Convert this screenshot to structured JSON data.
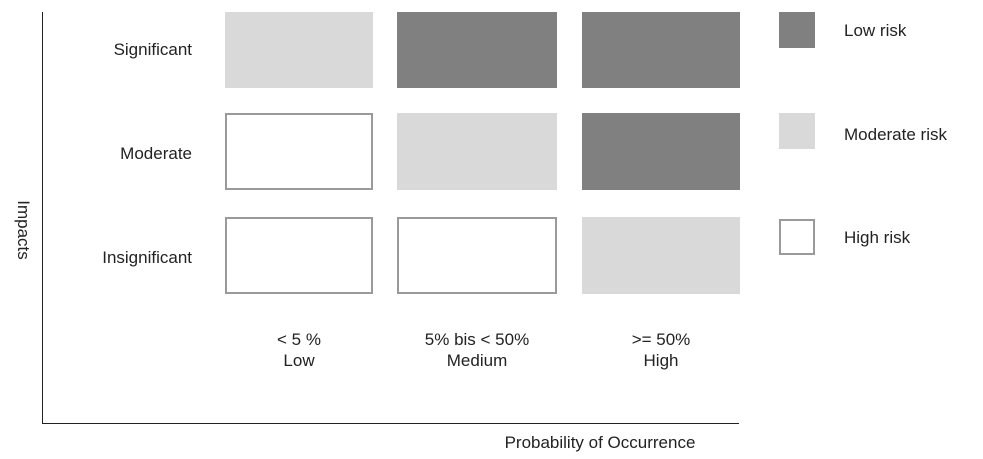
{
  "colors": {
    "dark": "#808080",
    "light": "#d9d9d9",
    "white": "#ffffff",
    "border": "#9a9a9a"
  },
  "axes": {
    "y_title": "Impacts",
    "x_title": "Probability of Occurrence"
  },
  "rows": [
    {
      "label": "Significant",
      "cells": [
        "light",
        "dark",
        "dark"
      ]
    },
    {
      "label": "Moderate",
      "cells": [
        "white",
        "light",
        "dark"
      ]
    },
    {
      "label": "Insignificant",
      "cells": [
        "white",
        "white",
        "light"
      ]
    }
  ],
  "columns": [
    {
      "line1": "< 5 %",
      "line2": "Low"
    },
    {
      "line1": "5% bis < 50%",
      "line2": "Medium"
    },
    {
      "line1": ">= 50%",
      "line2": "High"
    }
  ],
  "legend": [
    {
      "label": "Low risk",
      "fill": "dark"
    },
    {
      "label": "Moderate risk",
      "fill": "light"
    },
    {
      "label": "High risk",
      "fill": "white"
    }
  ]
}
